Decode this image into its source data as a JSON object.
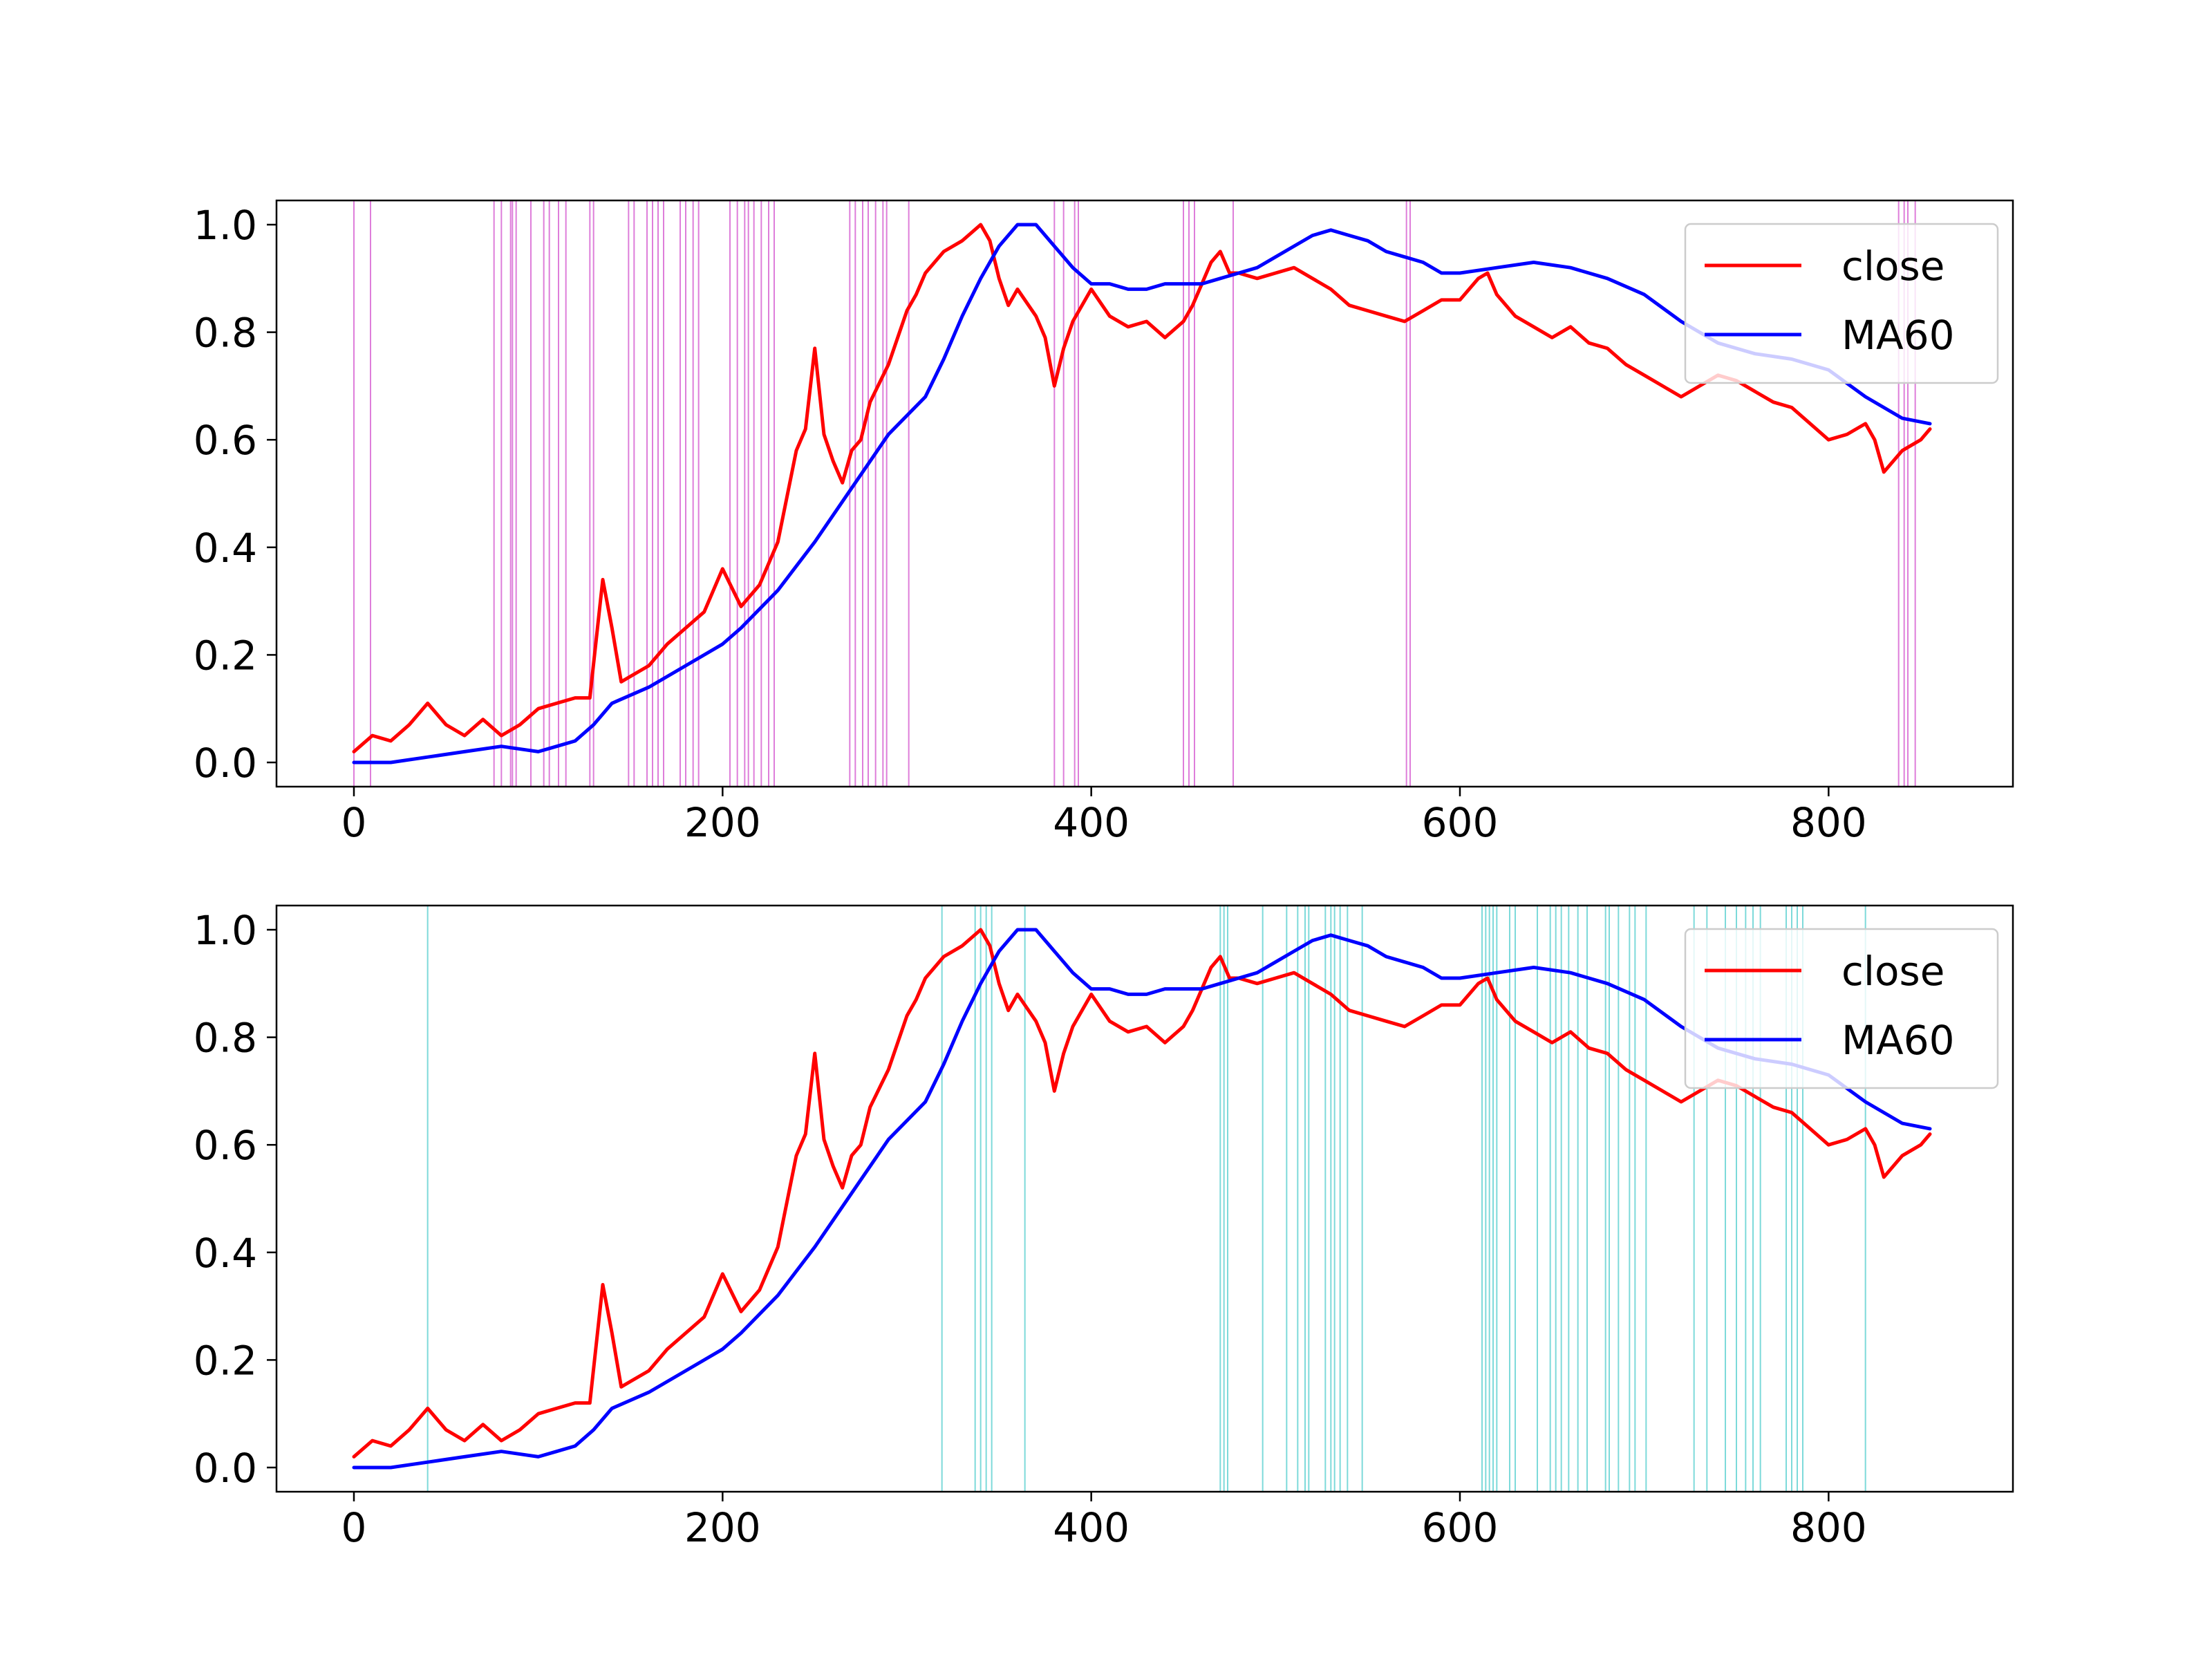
{
  "chart_data": [
    {
      "type": "line",
      "title": "",
      "xlabel": "",
      "ylabel": "",
      "xlim": [
        -42,
        900
      ],
      "ylim": [
        -0.045,
        1.045
      ],
      "xticks": [
        0,
        200,
        400,
        600,
        800
      ],
      "xtick_labels": [
        "0",
        "200",
        "400",
        "600",
        "800"
      ],
      "yticks": [
        0.0,
        0.2,
        0.4,
        0.6,
        0.8,
        1.0
      ],
      "ytick_labels": [
        "0.0",
        "0.2",
        "0.4",
        "0.6",
        "0.8",
        "1.0"
      ],
      "legend": {
        "location": "upper right",
        "entries": [
          "close",
          "MA60"
        ]
      },
      "marker_color": "#da70d6",
      "markers_x": [
        0,
        9,
        76,
        80,
        85,
        86,
        88,
        96,
        103,
        106,
        111,
        115,
        128,
        130,
        149,
        152,
        159,
        162,
        165,
        168,
        177,
        180,
        184,
        187,
        204,
        208,
        212,
        214,
        217,
        221,
        225,
        228,
        269,
        272,
        276,
        279,
        283,
        287,
        289,
        301,
        380,
        385,
        391,
        393,
        450,
        453,
        456,
        477,
        571,
        573,
        838,
        841,
        843,
        847
      ],
      "series": [
        {
          "name": "close",
          "color": "#ff0000",
          "x": [
            0,
            10,
            20,
            30,
            40,
            50,
            60,
            70,
            80,
            90,
            100,
            110,
            120,
            128,
            135,
            140,
            145,
            150,
            160,
            170,
            180,
            190,
            200,
            210,
            220,
            230,
            240,
            245,
            250,
            255,
            260,
            265,
            270,
            275,
            280,
            290,
            300,
            305,
            310,
            320,
            330,
            340,
            345,
            350,
            355,
            360,
            370,
            375,
            380,
            385,
            390,
            400,
            410,
            420,
            430,
            440,
            450,
            455,
            460,
            465,
            470,
            475,
            480,
            490,
            500,
            510,
            520,
            530,
            540,
            550,
            560,
            570,
            580,
            590,
            600,
            610,
            615,
            620,
            630,
            640,
            650,
            660,
            670,
            680,
            690,
            700,
            710,
            720,
            730,
            740,
            750,
            760,
            770,
            780,
            790,
            800,
            810,
            820,
            825,
            830,
            840,
            850,
            855
          ],
          "values": [
            0.02,
            0.05,
            0.04,
            0.07,
            0.11,
            0.07,
            0.05,
            0.08,
            0.05,
            0.07,
            0.1,
            0.11,
            0.12,
            0.12,
            0.34,
            0.25,
            0.15,
            0.16,
            0.18,
            0.22,
            0.25,
            0.28,
            0.36,
            0.29,
            0.33,
            0.41,
            0.58,
            0.62,
            0.77,
            0.61,
            0.56,
            0.52,
            0.58,
            0.6,
            0.67,
            0.74,
            0.84,
            0.87,
            0.91,
            0.95,
            0.97,
            1.0,
            0.97,
            0.9,
            0.85,
            0.88,
            0.83,
            0.79,
            0.7,
            0.77,
            0.82,
            0.88,
            0.83,
            0.81,
            0.82,
            0.79,
            0.82,
            0.85,
            0.89,
            0.93,
            0.95,
            0.91,
            0.91,
            0.9,
            0.91,
            0.92,
            0.9,
            0.88,
            0.85,
            0.84,
            0.83,
            0.82,
            0.84,
            0.86,
            0.86,
            0.9,
            0.91,
            0.87,
            0.83,
            0.81,
            0.79,
            0.81,
            0.78,
            0.77,
            0.74,
            0.72,
            0.7,
            0.68,
            0.7,
            0.72,
            0.71,
            0.69,
            0.67,
            0.66,
            0.63,
            0.6,
            0.61,
            0.63,
            0.6,
            0.54,
            0.58,
            0.6,
            0.62
          ]
        },
        {
          "name": "MA60",
          "color": "#0000ff",
          "x": [
            0,
            20,
            40,
            60,
            80,
            100,
            110,
            120,
            130,
            140,
            160,
            180,
            190,
            200,
            210,
            230,
            250,
            270,
            290,
            310,
            320,
            330,
            340,
            350,
            360,
            370,
            380,
            390,
            400,
            410,
            420,
            430,
            440,
            450,
            460,
            470,
            480,
            490,
            500,
            510,
            520,
            530,
            540,
            550,
            560,
            570,
            580,
            590,
            600,
            620,
            640,
            660,
            680,
            700,
            720,
            740,
            760,
            780,
            800,
            820,
            840,
            855
          ],
          "values": [
            0.0,
            0.0,
            0.01,
            0.02,
            0.03,
            0.02,
            0.03,
            0.04,
            0.07,
            0.11,
            0.14,
            0.18,
            0.2,
            0.22,
            0.25,
            0.32,
            0.41,
            0.51,
            0.61,
            0.68,
            0.75,
            0.83,
            0.9,
            0.96,
            1.0,
            1.0,
            0.96,
            0.92,
            0.89,
            0.89,
            0.88,
            0.88,
            0.89,
            0.89,
            0.89,
            0.9,
            0.91,
            0.92,
            0.94,
            0.96,
            0.98,
            0.99,
            0.98,
            0.97,
            0.95,
            0.94,
            0.93,
            0.91,
            0.91,
            0.92,
            0.93,
            0.92,
            0.9,
            0.87,
            0.82,
            0.78,
            0.76,
            0.75,
            0.73,
            0.68,
            0.64,
            0.63
          ]
        }
      ]
    },
    {
      "type": "line",
      "title": "",
      "xlabel": "",
      "ylabel": "",
      "xlim": [
        -42,
        900
      ],
      "ylim": [
        -0.045,
        1.045
      ],
      "xticks": [
        0,
        200,
        400,
        600,
        800
      ],
      "xtick_labels": [
        "0",
        "200",
        "400",
        "600",
        "800"
      ],
      "yticks": [
        0.0,
        0.2,
        0.4,
        0.6,
        0.8,
        1.0
      ],
      "ytick_labels": [
        "0.0",
        "0.2",
        "0.4",
        "0.6",
        "0.8",
        "1.0"
      ],
      "legend": {
        "location": "upper right",
        "entries": [
          "close",
          "MA60"
        ]
      },
      "marker_color": "#6fd6d6",
      "markers_x": [
        40,
        319,
        337,
        340,
        343,
        346,
        364,
        470,
        472,
        474,
        493,
        506,
        512,
        516,
        518,
        527,
        530,
        532,
        535,
        539,
        547,
        612,
        614,
        616,
        618,
        620,
        627,
        630,
        642,
        649,
        652,
        655,
        659,
        664,
        669,
        679,
        681,
        686,
        692,
        695,
        701,
        727,
        734,
        744,
        750,
        755,
        759,
        763,
        777,
        780,
        783,
        786,
        820
      ],
      "series": [
        {
          "name": "close",
          "color": "#ff0000",
          "x": [
            0,
            10,
            20,
            30,
            40,
            50,
            60,
            70,
            80,
            90,
            100,
            110,
            120,
            128,
            135,
            140,
            145,
            150,
            160,
            170,
            180,
            190,
            200,
            210,
            220,
            230,
            240,
            245,
            250,
            255,
            260,
            265,
            270,
            275,
            280,
            290,
            300,
            305,
            310,
            320,
            330,
            340,
            345,
            350,
            355,
            360,
            370,
            375,
            380,
            385,
            390,
            400,
            410,
            420,
            430,
            440,
            450,
            455,
            460,
            465,
            470,
            475,
            480,
            490,
            500,
            510,
            520,
            530,
            540,
            550,
            560,
            570,
            580,
            590,
            600,
            610,
            615,
            620,
            630,
            640,
            650,
            660,
            670,
            680,
            690,
            700,
            710,
            720,
            730,
            740,
            750,
            760,
            770,
            780,
            790,
            800,
            810,
            820,
            825,
            830,
            840,
            850,
            855
          ],
          "values": [
            0.02,
            0.05,
            0.04,
            0.07,
            0.11,
            0.07,
            0.05,
            0.08,
            0.05,
            0.07,
            0.1,
            0.11,
            0.12,
            0.12,
            0.34,
            0.25,
            0.15,
            0.16,
            0.18,
            0.22,
            0.25,
            0.28,
            0.36,
            0.29,
            0.33,
            0.41,
            0.58,
            0.62,
            0.77,
            0.61,
            0.56,
            0.52,
            0.58,
            0.6,
            0.67,
            0.74,
            0.84,
            0.87,
            0.91,
            0.95,
            0.97,
            1.0,
            0.97,
            0.9,
            0.85,
            0.88,
            0.83,
            0.79,
            0.7,
            0.77,
            0.82,
            0.88,
            0.83,
            0.81,
            0.82,
            0.79,
            0.82,
            0.85,
            0.89,
            0.93,
            0.95,
            0.91,
            0.91,
            0.9,
            0.91,
            0.92,
            0.9,
            0.88,
            0.85,
            0.84,
            0.83,
            0.82,
            0.84,
            0.86,
            0.86,
            0.9,
            0.91,
            0.87,
            0.83,
            0.81,
            0.79,
            0.81,
            0.78,
            0.77,
            0.74,
            0.72,
            0.7,
            0.68,
            0.7,
            0.72,
            0.71,
            0.69,
            0.67,
            0.66,
            0.63,
            0.6,
            0.61,
            0.63,
            0.6,
            0.54,
            0.58,
            0.6,
            0.62
          ]
        },
        {
          "name": "MA60",
          "color": "#0000ff",
          "x": [
            0,
            20,
            40,
            60,
            80,
            100,
            110,
            120,
            130,
            140,
            160,
            180,
            190,
            200,
            210,
            230,
            250,
            270,
            290,
            310,
            320,
            330,
            340,
            350,
            360,
            370,
            380,
            390,
            400,
            410,
            420,
            430,
            440,
            450,
            460,
            470,
            480,
            490,
            500,
            510,
            520,
            530,
            540,
            550,
            560,
            570,
            580,
            590,
            600,
            620,
            640,
            660,
            680,
            700,
            720,
            740,
            760,
            780,
            800,
            820,
            840,
            855
          ],
          "values": [
            0.0,
            0.0,
            0.01,
            0.02,
            0.03,
            0.02,
            0.03,
            0.04,
            0.07,
            0.11,
            0.14,
            0.18,
            0.2,
            0.22,
            0.25,
            0.32,
            0.41,
            0.51,
            0.61,
            0.68,
            0.75,
            0.83,
            0.9,
            0.96,
            1.0,
            1.0,
            0.96,
            0.92,
            0.89,
            0.89,
            0.88,
            0.88,
            0.89,
            0.89,
            0.89,
            0.9,
            0.91,
            0.92,
            0.94,
            0.96,
            0.98,
            0.99,
            0.98,
            0.97,
            0.95,
            0.94,
            0.93,
            0.91,
            0.91,
            0.92,
            0.93,
            0.92,
            0.9,
            0.87,
            0.82,
            0.78,
            0.76,
            0.75,
            0.73,
            0.68,
            0.64,
            0.63
          ]
        }
      ]
    }
  ]
}
